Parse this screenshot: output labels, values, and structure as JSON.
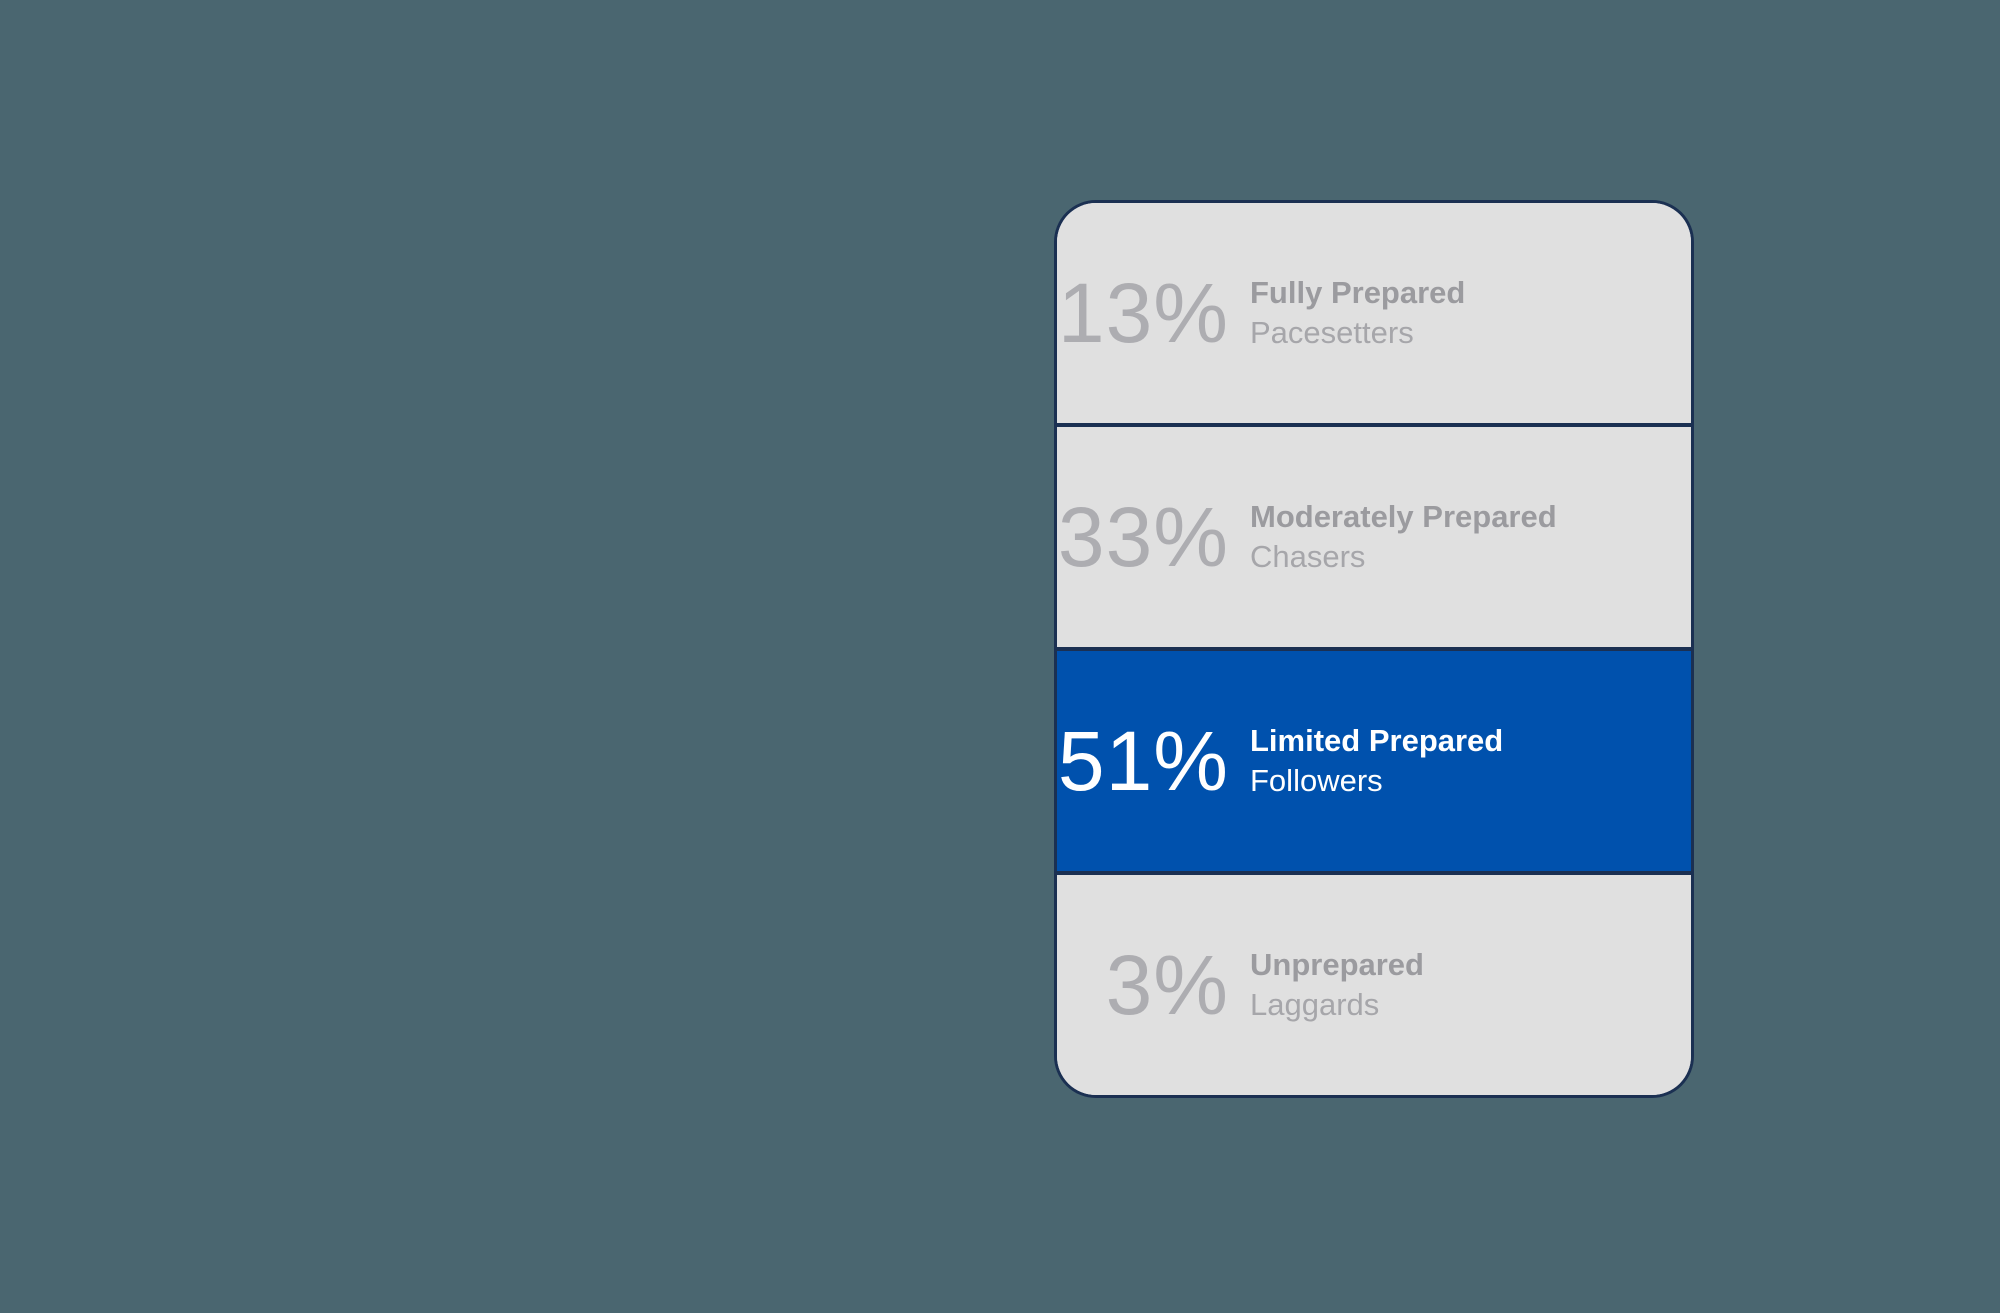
{
  "page": {
    "background_color": "#4A6670"
  },
  "card": {
    "style": {
      "border_color": "#1B3052",
      "band_bg": "#E0E0E0",
      "highlight_bg": "#0051AD",
      "percent_color": "#ADADB1",
      "label_bold_color": "#9B9B9F",
      "label_sub_color": "#A6A6AA",
      "highlight_text_color": "#FFFFFF"
    },
    "segments": [
      {
        "percent": "13%",
        "label": "Fully Prepared",
        "sublabel": "Pacesetters",
        "highlighted": false
      },
      {
        "percent": "33%",
        "label": "Moderately Prepared",
        "sublabel": "Chasers",
        "highlighted": false
      },
      {
        "percent": "51%",
        "label": "Limited Prepared",
        "sublabel": "Followers",
        "highlighted": true
      },
      {
        "percent": "3%",
        "label": "Unprepared",
        "sublabel": "Laggards",
        "highlighted": false
      }
    ]
  },
  "chart_data": {
    "type": "bar",
    "categories": [
      "Fully Prepared",
      "Moderately Prepared",
      "Limited Prepared",
      "Unprepared"
    ],
    "values": [
      13,
      33,
      51,
      3
    ],
    "category_sublabels": [
      "Pacesetters",
      "Chasers",
      "Followers",
      "Laggards"
    ],
    "unit": "%",
    "highlighted_category": "Limited Prepared",
    "highlight_color": "#0051AD",
    "layout": "vertical stacked list of equal-height bands, values shown as text labels",
    "legend_position": "none",
    "grid": false
  }
}
